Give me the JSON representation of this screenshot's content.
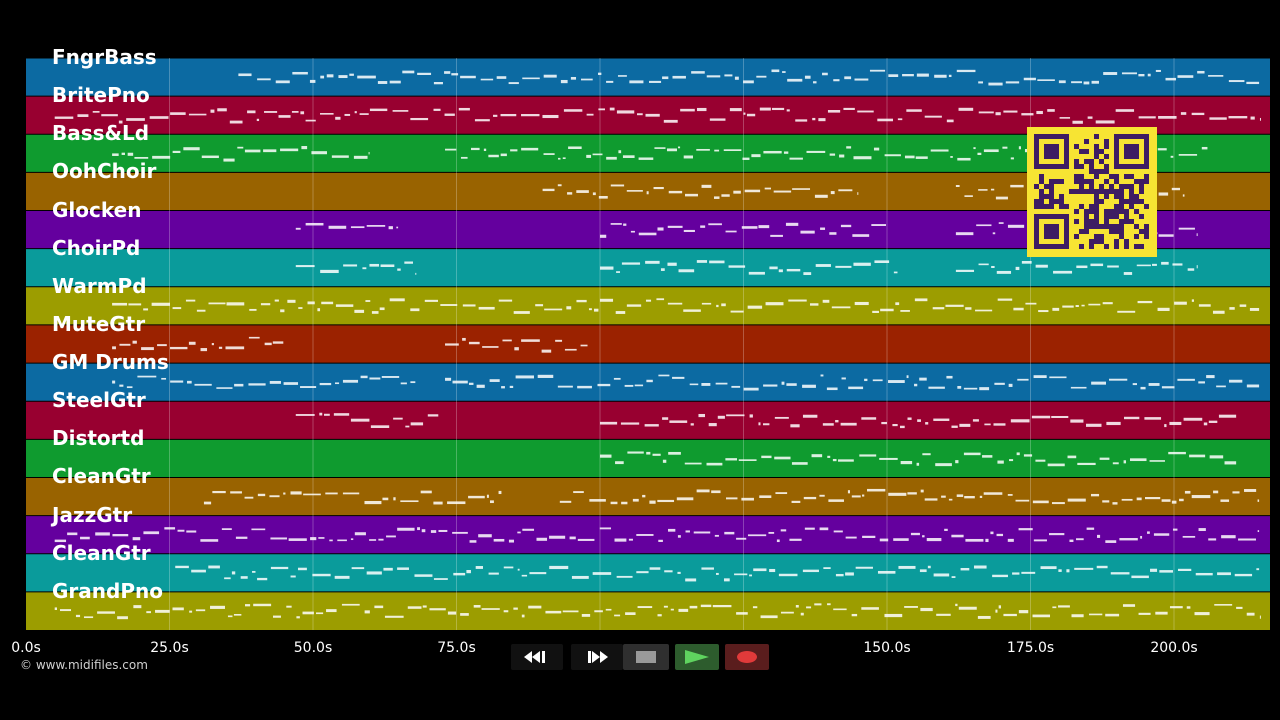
{
  "tracks": [
    {
      "name": "FngrBass",
      "color": "#0c6aa2"
    },
    {
      "name": "BritePno",
      "color": "#980030"
    },
    {
      "name": "Bass&Ld",
      "color": "#0f9b2f"
    },
    {
      "name": "OohChoir",
      "color": "#996300"
    },
    {
      "name": "Glocken",
      "color": "#64009e"
    },
    {
      "name": "ChoirPd",
      "color": "#0a9b9b"
    },
    {
      "name": "WarmPd",
      "color": "#9c9d00"
    },
    {
      "name": "MuteGtr",
      "color": "#9b2200"
    },
    {
      "name": "GM Drums",
      "color": "#0c6aa2"
    },
    {
      "name": "SteelGtr",
      "color": "#980030"
    },
    {
      "name": "Distortd",
      "color": "#0f9b2f"
    },
    {
      "name": "CleanGtr",
      "color": "#996300"
    },
    {
      "name": "JazzGtr",
      "color": "#64009e"
    },
    {
      "name": "CleanGtr",
      "color": "#0a9b9b"
    },
    {
      "name": "GrandPno",
      "color": "#9c9d00"
    }
  ],
  "timeline": {
    "ticks": [
      "0.0s",
      "25.0s",
      "50.0s",
      "75.0s",
      "150.0s",
      "175.0s",
      "200.0s"
    ],
    "tick_seconds": [
      0,
      25,
      50,
      75,
      150,
      175,
      200
    ]
  },
  "copyright": "© www.midifiles.com",
  "transport": {
    "rewind": "rewind-icon",
    "forward": "fast-forward-icon",
    "stop": "stop-icon",
    "play": "play-icon",
    "record": "record-icon",
    "play_color": "#5fd35f",
    "record_color": "#e03a3a"
  },
  "qr_color": "#f7e433",
  "qr_fg": "#3e1d63"
}
